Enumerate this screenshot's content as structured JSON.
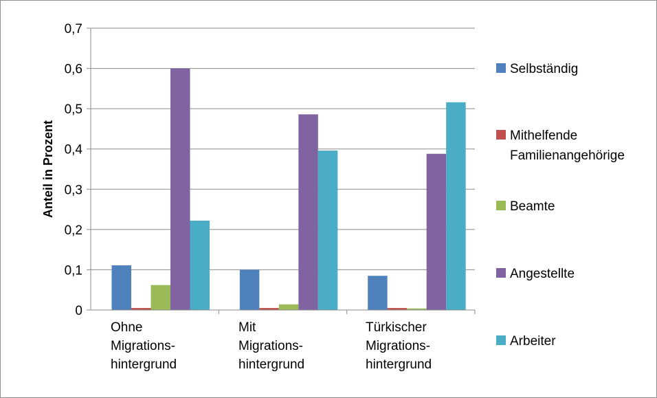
{
  "chart_data": {
    "type": "bar",
    "title": "",
    "xlabel": "",
    "ylabel": "Anteil in Prozent",
    "ylim": [
      0,
      0.7
    ],
    "yticks": [
      0,
      0.1,
      0.2,
      0.3,
      0.4,
      0.5,
      0.6,
      0.7
    ],
    "ytick_labels": [
      "0",
      "0,1",
      "0,2",
      "0,3",
      "0,4",
      "0,5",
      "0,6",
      "0,7"
    ],
    "grid": true,
    "legend_position": "right",
    "categories": [
      [
        "Ohne",
        "Migrations-",
        "hintergrund"
      ],
      [
        "Mit",
        "Migrations-",
        "hintergrund"
      ],
      [
        "Türkischer",
        "Migrations-",
        "hintergrund"
      ]
    ],
    "series": [
      {
        "name": "Selbständig",
        "legend_lines": [
          "Selbständig"
        ],
        "color": "#4f81bd",
        "values": [
          0.111,
          0.1,
          0.085
        ]
      },
      {
        "name": "Mithelfende Familienangehörige",
        "legend_lines": [
          "Mithelfende",
          "Familienangehörige"
        ],
        "color": "#c0504d",
        "values": [
          0.005,
          0.005,
          0.005
        ]
      },
      {
        "name": "Beamte",
        "legend_lines": [
          "Beamte"
        ],
        "color": "#9bbb59",
        "values": [
          0.062,
          0.014,
          0.004
        ]
      },
      {
        "name": "Angestellte",
        "legend_lines": [
          "Angestellte"
        ],
        "color": "#8064a2",
        "values": [
          0.6,
          0.486,
          0.388
        ]
      },
      {
        "name": "Arbeiter",
        "legend_lines": [
          "Arbeiter"
        ],
        "color": "#4bacc6",
        "values": [
          0.222,
          0.396,
          0.516
        ]
      }
    ]
  }
}
